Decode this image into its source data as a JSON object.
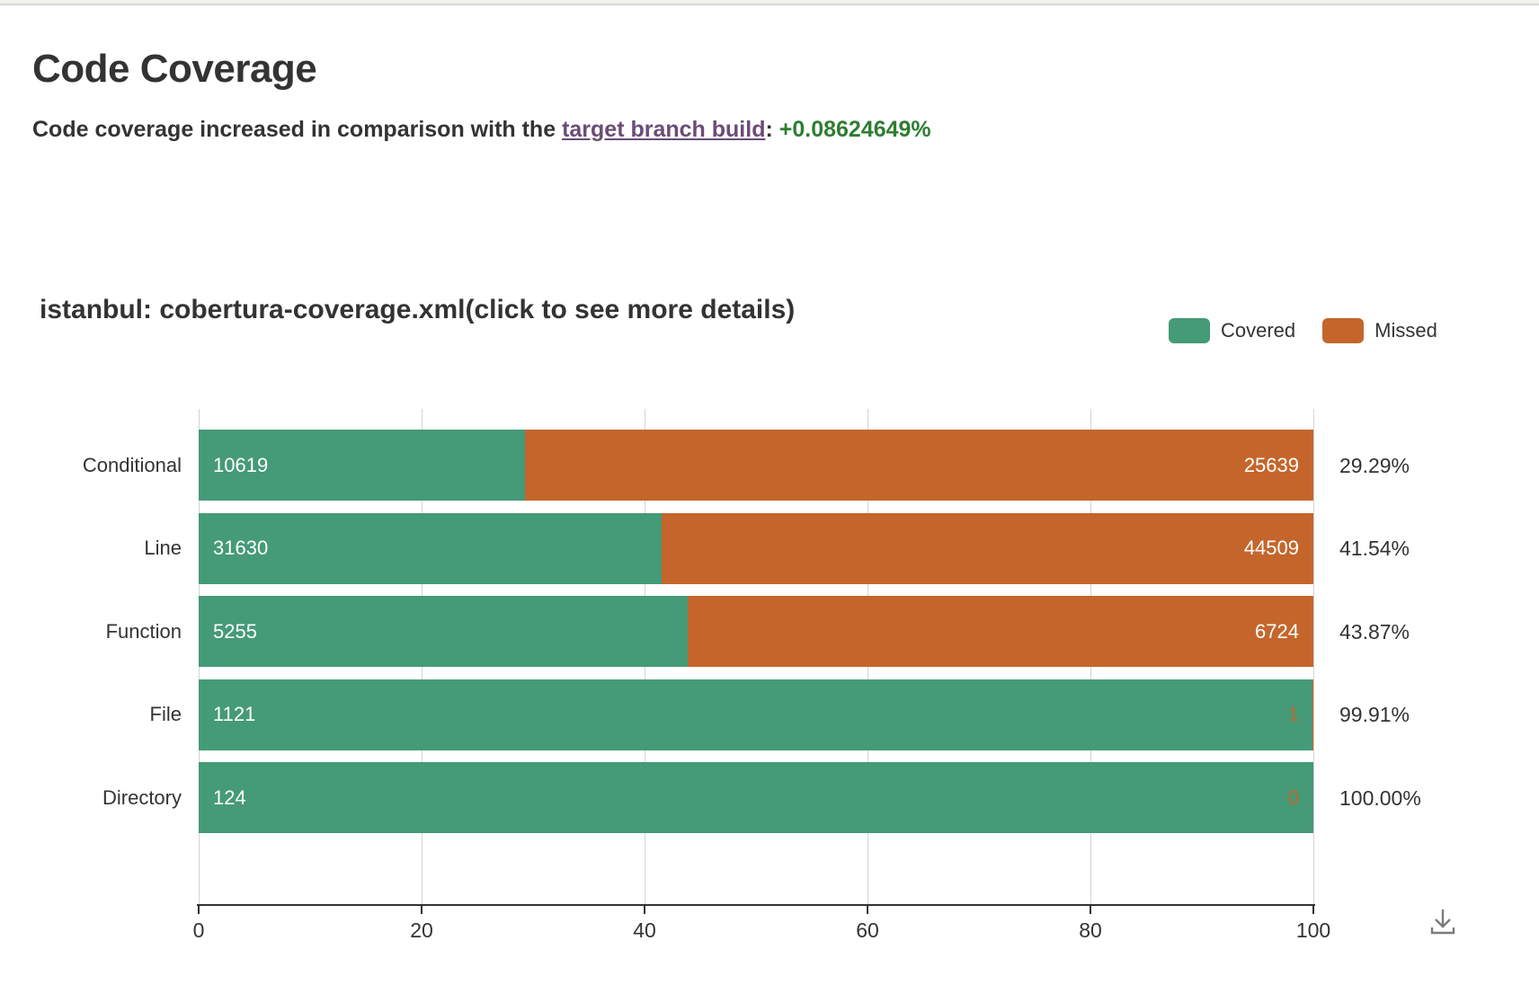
{
  "page": {
    "title": "Code Coverage",
    "subtitle_prefix": "Code coverage increased in comparison with the ",
    "subtitle_link": "target branch build",
    "subtitle_separator": ": ",
    "subtitle_delta": "+0.08624649%",
    "delta_color": "#2f7d32",
    "link_color": "#6b4c77"
  },
  "chart": {
    "title": "istanbul: cobertura-coverage.xml(click to see more details)",
    "legend": [
      {
        "label": "Covered",
        "color": "#459a77"
      },
      {
        "label": "Missed",
        "color": "#c4662c"
      }
    ]
  },
  "chart_data": {
    "type": "bar",
    "orientation": "horizontal",
    "stacked": true,
    "categories": [
      "Conditional",
      "Line",
      "Function",
      "File",
      "Directory"
    ],
    "series": [
      {
        "name": "Covered",
        "color": "#459a77",
        "values": [
          10619,
          31630,
          5255,
          1121,
          124
        ]
      },
      {
        "name": "Missed",
        "color": "#c4662c",
        "values": [
          25639,
          44509,
          6724,
          1,
          0
        ]
      }
    ],
    "covered_percent": [
      29.29,
      41.54,
      43.87,
      99.91,
      100.0
    ],
    "percent_labels": [
      "29.29%",
      "41.54%",
      "43.87%",
      "99.91%",
      "100.00%"
    ],
    "x_ticks": [
      0,
      20,
      40,
      60,
      80,
      100
    ],
    "xlim": [
      0,
      100
    ],
    "xlabel": "",
    "ylabel": "",
    "grid": true,
    "legend_position": "top-right",
    "toolbox": [
      "download-icon"
    ]
  }
}
